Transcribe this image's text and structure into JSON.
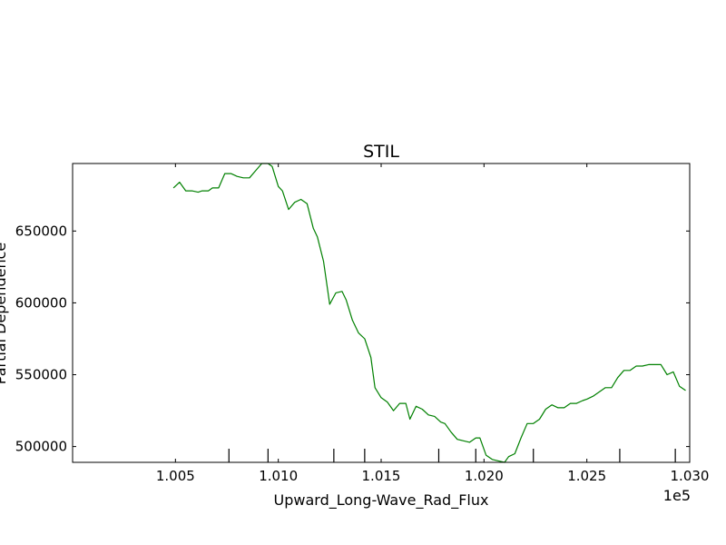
{
  "chart_data": {
    "type": "line",
    "title": "STIL",
    "xlabel": "Upward_Long-Wave_Rad_Flux",
    "ylabel": "Partial Dependence",
    "x_offset_label": "1e5",
    "xlim": [
      1.0,
      1.03
    ],
    "ylim": [
      489000,
      697000
    ],
    "xticks": [
      1.005,
      1.01,
      1.015,
      1.02,
      1.025,
      1.03
    ],
    "xtick_labels": [
      "1.005",
      "1.010",
      "1.015",
      "1.020",
      "1.025",
      "1.030"
    ],
    "yticks": [
      500000,
      550000,
      600000,
      650000
    ],
    "ytick_labels": [
      "500000",
      "550000",
      "600000",
      "650000"
    ],
    "grid": false,
    "rug": [
      1.0076,
      1.0095,
      1.0127,
      1.0142,
      1.0178,
      1.0196,
      1.0224,
      1.0266,
      1.0293
    ],
    "series": [
      {
        "color": "#008000",
        "x": [
          1.0049,
          1.0052,
          1.0055,
          1.0058,
          1.0061,
          1.0063,
          1.0066,
          1.0068,
          1.0071,
          1.0074,
          1.0077,
          1.008,
          1.0083,
          1.0086,
          1.0089,
          1.0092,
          1.0095,
          1.0097,
          1.01,
          1.0102,
          1.0105,
          1.0108,
          1.0111,
          1.0114,
          1.0117,
          1.0119,
          1.0122,
          1.0125,
          1.0128,
          1.0131,
          1.0133,
          1.0136,
          1.0139,
          1.0142,
          1.0145,
          1.0147,
          1.015,
          1.0153,
          1.0156,
          1.0159,
          1.0162,
          1.0164,
          1.0167,
          1.017,
          1.0173,
          1.0176,
          1.0179,
          1.0181,
          1.0184,
          1.0187,
          1.019,
          1.0193,
          1.0196,
          1.0198,
          1.0201,
          1.0204,
          1.0207,
          1.021,
          1.0212,
          1.0215,
          1.0218,
          1.0221,
          1.0224,
          1.0227,
          1.023,
          1.0233,
          1.0236,
          1.0239,
          1.0242,
          1.0245,
          1.0248,
          1.025,
          1.0253,
          1.0256,
          1.0259,
          1.0262,
          1.0265,
          1.0268,
          1.0271,
          1.0274,
          1.0277,
          1.028,
          1.0283,
          1.0286,
          1.0289,
          1.0292,
          1.0295,
          1.0298
        ],
        "y": [
          680000,
          684000,
          678000,
          678000,
          677000,
          678000,
          678000,
          680000,
          680000,
          690000,
          690000,
          688000,
          687000,
          687000,
          692000,
          697000,
          697000,
          695000,
          681000,
          678000,
          665000,
          670000,
          672000,
          669000,
          652000,
          646000,
          629000,
          599000,
          607000,
          608000,
          602000,
          588000,
          579000,
          575000,
          562000,
          541000,
          534000,
          531000,
          525000,
          530000,
          530000,
          519000,
          528000,
          526000,
          522000,
          521000,
          517000,
          516000,
          510000,
          505000,
          504000,
          503000,
          506000,
          506000,
          494000,
          491000,
          490000,
          489000,
          493000,
          495000,
          506000,
          516000,
          516000,
          519000,
          526000,
          529000,
          527000,
          527000,
          530000,
          530000,
          532000,
          533000,
          535000,
          538000,
          541000,
          541000,
          548000,
          553000,
          553000,
          556000,
          556000,
          557000,
          557000,
          557000,
          550000,
          552000,
          542000,
          539000
        ]
      }
    ]
  }
}
